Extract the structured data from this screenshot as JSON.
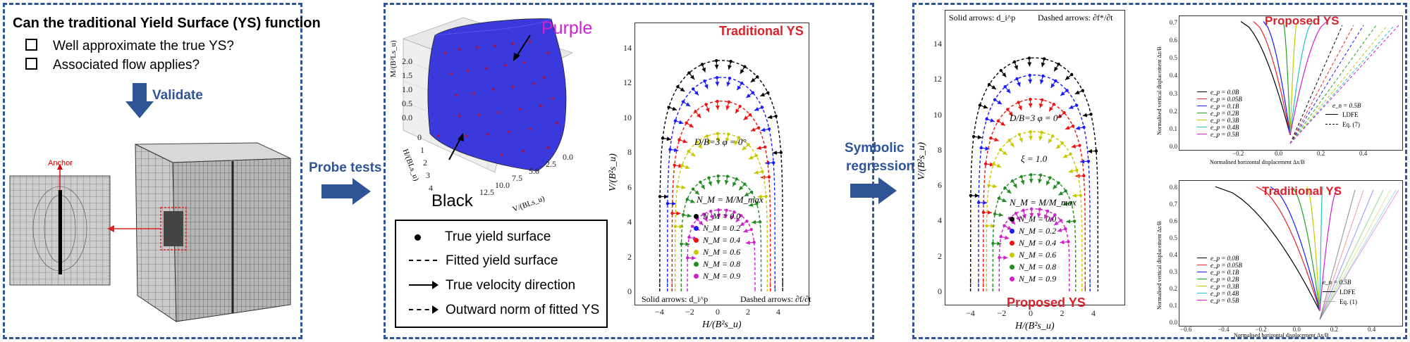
{
  "panel1": {
    "title": "Can the traditional Yield Surface (YS) function",
    "checklist": [
      "Well approximate the true YS?",
      "Associated flow applies?"
    ],
    "validate_label": "Validate",
    "anchor_label": "Anchor"
  },
  "arrow1_label": "Probe tests",
  "panel2": {
    "purple_label": "Purple",
    "black_label": "Black",
    "surface_z_label": "M/(B²Ls_u)",
    "surface_x_label": "H/(BLs_u)",
    "surface_y_label": "V/(BLs_u)",
    "surface_z_ticks": [
      "0.0",
      "0.5",
      "1.0",
      "1.5",
      "2.0"
    ],
    "surface_x_ticks": [
      "0",
      "1",
      "2",
      "3",
      "4"
    ],
    "surface_y_ticks": [
      "12.5",
      "10.0",
      "7.5",
      "5.0",
      "2.5",
      "0.0"
    ],
    "legend": [
      "True yield surface",
      "Fitted yield surface",
      "True velocity direction",
      "Outward norm of fitted YS"
    ],
    "plot_title": "Traditional YS",
    "db_annotation": "D/B=3   φ = 0°",
    "nm_def": "N_M = M/M_max",
    "nm_entries": [
      "N_M = 0.0",
      "N_M = 0.2",
      "N_M = 0.4",
      "N_M = 0.6",
      "N_M = 0.8",
      "N_M = 0.9"
    ],
    "nm_colors": [
      "#000000",
      "#1a1aff",
      "#ee1111",
      "#c8c800",
      "#228b22",
      "#cc22cc"
    ],
    "bottom_note_left": "Solid arrows: d_i^p",
    "bottom_note_right": "Dashed arrows: ∂f/∂t",
    "xlabel": "H/(B²s_u)",
    "ylabel": "V/(B²s_u)",
    "xticks": [
      "−4",
      "−2",
      "0",
      "2",
      "4"
    ],
    "yticks": [
      "0",
      "2",
      "4",
      "6",
      "8",
      "10",
      "12",
      "14"
    ]
  },
  "arrow2_label_line1": "Symbolic",
  "arrow2_label_line2": "regression",
  "panel3": {
    "top_note_left": "Solid arrows: d_i^p",
    "top_note_right": "Dashed arrows: ∂f*/∂t",
    "db_annotation": "D/B=3   φ = 0°",
    "xi_annotation": "ξ = 1.0",
    "nm_def": "N_M = M/M_max",
    "nm_entries": [
      "N_M = 0.0",
      "N_M = 0.2",
      "N_M = 0.4",
      "N_M = 0.6",
      "N_M = 0.8",
      "N_M = 0.9"
    ],
    "plot_title": "Proposed YS",
    "xlabel": "H/(B²s_u)",
    "ylabel": "V/(B²s_u)",
    "xticks": [
      "−4",
      "−2",
      "0",
      "2",
      "4"
    ],
    "yticks": [
      "0",
      "2",
      "4",
      "6",
      "8",
      "10",
      "12",
      "14"
    ],
    "top_chart": {
      "title": "Proposed YS",
      "ylabel": "Normalised vertical displacement Δz/B",
      "xlabel": "Normalised horizontal displacement Δx/B",
      "yticks": [
        "0.0",
        "0.1",
        "0.2",
        "0.3",
        "0.4",
        "0.5",
        "0.6",
        "0.7"
      ],
      "xticks": [
        "−0.2",
        "0.0",
        "0.2",
        "0.4"
      ],
      "legend": [
        "e_p = 0.0B",
        "e_p = 0.05B",
        "e_p = 0.1B",
        "e_p = 0.2B",
        "e_p = 0.3B",
        "e_p = 0.4B",
        "e_p = 0.5B"
      ],
      "en_label": "e_n = 0.5B",
      "style_legend": [
        "LDFE",
        "Eq. (7)"
      ]
    },
    "bottom_chart": {
      "title": "Traditional YS",
      "ylabel": "Normalised vertical displacement Δz/B",
      "xlabel": "Normalised horizontal displacement Δx/B",
      "yticks": [
        "0.0",
        "0.1",
        "0.2",
        "0.3",
        "0.4",
        "0.5",
        "0.6",
        "0.7",
        "0.8"
      ],
      "xticks": [
        "−0.6",
        "−0.4",
        "−0.2",
        "0.0",
        "0.2",
        "0.4"
      ],
      "legend": [
        "e_p = 0.0B",
        "e_p = 0.05B",
        "e_p = 0.1B",
        "e_p = 0.2B",
        "e_p = 0.3B",
        "e_p = 0.4B",
        "e_p = 0.5B"
      ],
      "en_label": "e_n = 0.5B",
      "style_legend": [
        "LDFE",
        "Eq. (1)"
      ]
    }
  },
  "colors": {
    "panel_border": "#2f5597",
    "accent_blue": "#2f5597",
    "title_red": "#d9222a",
    "purple": "#cc22cc"
  }
}
